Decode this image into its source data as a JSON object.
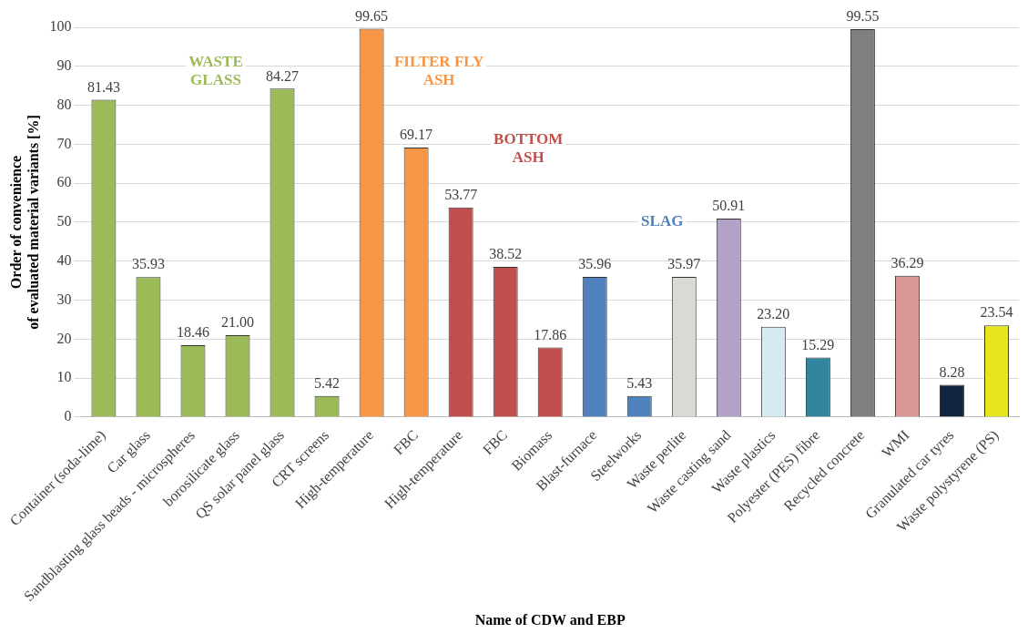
{
  "chart_data": {
    "type": "bar",
    "xlabel": "Name of CDW and EBP",
    "ylabel": "Order of convenience of evaluated material variants [%]",
    "categories": [
      "Container (soda-lime)",
      "Car glass",
      "Sandblasting glass beads - microspheres",
      "borosilicate glass",
      "QS solar panel glass",
      "CRT screens",
      "High-temperature",
      "FBC",
      "High-temperature",
      "FBC",
      "Biomass",
      "Blast-furnace",
      "Steelworks",
      "Waste perlite",
      "Waste casting sand",
      "Waste plastics",
      "Polyester (PES) fibre",
      "Recycled concrete",
      "WMI",
      "Granulated car tyres",
      "Waste polystyrene (PS)"
    ],
    "values": [
      81.43,
      35.93,
      18.46,
      21.0,
      84.27,
      5.42,
      99.65,
      69.17,
      53.77,
      38.52,
      17.86,
      35.96,
      5.43,
      35.97,
      50.91,
      23.2,
      15.29,
      99.55,
      36.29,
      8.28,
      23.54
    ],
    "value_labels": [
      "81.43",
      "35.93",
      "18.46",
      "21.00",
      "84.27",
      "5.42",
      "99.65",
      "69.17",
      "53.77",
      "38.52",
      "17.86",
      "35.96",
      "5.43",
      "35.97",
      "50.91",
      "23.20",
      "15.29",
      "99.55",
      "36.29",
      "8.28",
      "23.54"
    ],
    "colors": [
      "#9bbb59",
      "#9bbb59",
      "#9bbb59",
      "#9bbb59",
      "#9bbb59",
      "#9bbb59",
      "#f79646",
      "#f79646",
      "#c0504d",
      "#c0504d",
      "#c0504d",
      "#4f81bd",
      "#4f81bd",
      "#d9d9d6",
      "#b3a2c7",
      "#d6ecf2",
      "#31859c",
      "#7f7f7f",
      "#d99694",
      "#0f243e",
      "#e5e620"
    ],
    "ylim": [
      0,
      100
    ],
    "yticks": [
      0,
      10,
      20,
      30,
      40,
      50,
      60,
      70,
      80,
      90,
      100
    ],
    "grid": "y",
    "legend": false,
    "annotations": [
      "WASTE GLASS",
      "FILTER FLY ASH",
      "BOTTOM ASH",
      "SLAG"
    ]
  }
}
